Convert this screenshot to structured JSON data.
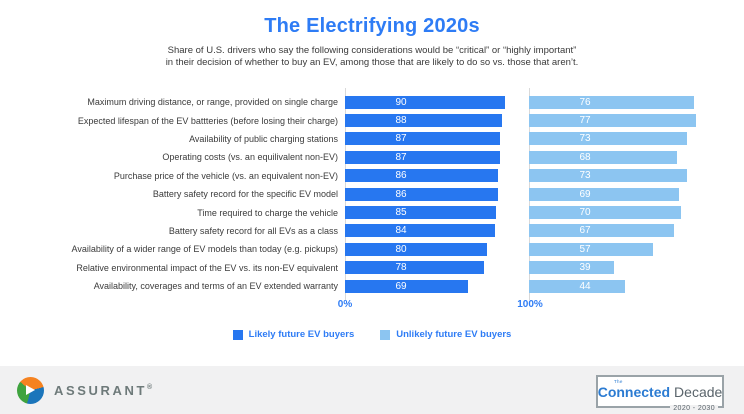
{
  "chart_data": {
    "type": "bar",
    "orientation": "horizontal",
    "title": "The Electrifying 2020s",
    "subtitle": [
      "Share of U.S. drivers who say the following considerations would be “critical” or “highly important”",
      "in their decision of whether to buy an EV, among those that are likely to do so vs. those that aren’t."
    ],
    "categories": [
      "Maximum driving distance, or range, provided on single charge",
      "Expected lifespan of the EV battteries (before losing their charge)",
      "Availability of public charging stations",
      "Operating costs (vs. an equilivalent non-EV)",
      "Purchase price of the vehicle (vs. an equivalent non-EV)",
      "Battery safety record for the specific EV model",
      "Time required to charge the vehicle",
      "Battery safety record for all EVs as a class",
      "Availability of a wider range of EV models than today (e.g. pickups)",
      "Relative environmental impact of the EV vs. its non-EV equivalent",
      "Availability, coverages and terms of an EV extended warranty"
    ],
    "series": [
      {
        "name": "Likely future EV buyers",
        "color": "#2777F0",
        "values": [
          90,
          88,
          87,
          87,
          86,
          86,
          85,
          84,
          80,
          78,
          69
        ]
      },
      {
        "name": "Unlikely future EV buyers",
        "color": "#8CC5F1",
        "values": [
          76,
          77,
          73,
          68,
          73,
          69,
          70,
          67,
          57,
          39,
          44
        ]
      }
    ],
    "xlim": [
      0,
      100
    ],
    "xtick_labels": [
      "0%",
      "100%"
    ],
    "value_labels": true,
    "legend_position": "bottom",
    "grid": false
  },
  "colors": {
    "title_blue": "#2E7CF5",
    "likely_bar": "#2777F0",
    "unlikely_bar": "#8CC5F1",
    "axis_label_blue": "#2E7CF5",
    "footer_bg": "#F1F1F2"
  },
  "footer": {
    "brand": "ASSURANT",
    "registered_mark": "®",
    "badge": {
      "the": "The",
      "connected": "Connected",
      "decade": "Decade",
      "years": "2020 - 2030"
    }
  }
}
